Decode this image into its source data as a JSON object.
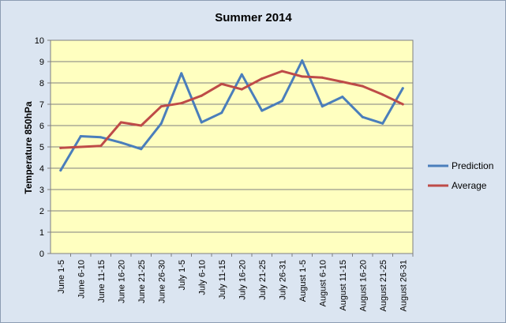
{
  "chart_data": {
    "type": "line",
    "title": "Summer 2014",
    "ylabel": "Temperature 850hPa",
    "xlabel": "",
    "ylim": [
      0,
      10
    ],
    "yticks": [
      0,
      1,
      2,
      3,
      4,
      5,
      6,
      7,
      8,
      9,
      10
    ],
    "grid": true,
    "legend_position": "right",
    "categories": [
      "June 1-5",
      "June 6-10",
      "June 11-15",
      "June 16-20",
      "June 21-25",
      "June 26-30",
      "July 1-5",
      "July 6-10",
      "July 11-15",
      "July 16-20",
      "July 21-25",
      "July 26-31",
      "August 1-5",
      "August 6-10",
      "August 11-15",
      "August 16-20",
      "August 21-25",
      "August 26-31"
    ],
    "series": [
      {
        "name": "Prediction",
        "color": "#4a7ebb",
        "values": [
          3.9,
          5.5,
          5.45,
          5.2,
          4.9,
          6.1,
          8.45,
          6.15,
          6.6,
          8.4,
          6.7,
          7.15,
          9.05,
          6.9,
          7.35,
          6.4,
          6.1,
          7.75
        ]
      },
      {
        "name": "Average",
        "color": "#be4b48",
        "values": [
          4.95,
          5.0,
          5.05,
          6.15,
          6.0,
          6.9,
          7.05,
          7.4,
          7.95,
          7.7,
          8.2,
          8.55,
          8.3,
          8.25,
          8.05,
          7.85,
          7.45,
          7.0
        ]
      }
    ],
    "colors": {
      "plot_background": "#ffffc0",
      "chart_background": "#dbe5f1",
      "gridline": "#7f7f7f"
    }
  }
}
